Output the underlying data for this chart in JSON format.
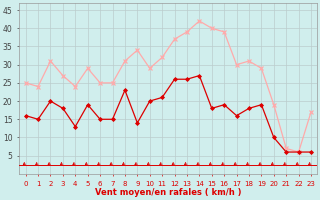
{
  "hours": [
    0,
    1,
    2,
    3,
    4,
    5,
    6,
    7,
    8,
    9,
    10,
    11,
    12,
    13,
    14,
    15,
    16,
    17,
    18,
    19,
    20,
    21,
    22,
    23
  ],
  "wind_avg": [
    16,
    15,
    20,
    18,
    13,
    19,
    15,
    15,
    23,
    14,
    20,
    21,
    26,
    26,
    27,
    18,
    19,
    16,
    18,
    19,
    10,
    6,
    6,
    6
  ],
  "wind_gust": [
    25,
    24,
    31,
    27,
    24,
    29,
    25,
    25,
    31,
    34,
    29,
    32,
    37,
    39,
    42,
    40,
    39,
    30,
    31,
    29,
    19,
    7,
    6,
    17
  ],
  "xlabel": "Vent moyen/en rafales ( km/h )",
  "ylim": [
    0,
    47
  ],
  "yticks": [
    5,
    10,
    15,
    20,
    25,
    30,
    35,
    40,
    45
  ],
  "xticks": [
    0,
    1,
    2,
    3,
    4,
    5,
    6,
    7,
    8,
    9,
    10,
    11,
    12,
    13,
    14,
    15,
    16,
    17,
    18,
    19,
    20,
    21,
    22,
    23
  ],
  "color_avg": "#dd0000",
  "color_gust": "#ffaaaa",
  "bg_color": "#d0eeed",
  "grid_color": "#bbcccc",
  "arrow_color": "#dd0000",
  "tick_color": "#dd0000",
  "ytick_color": "#444444"
}
